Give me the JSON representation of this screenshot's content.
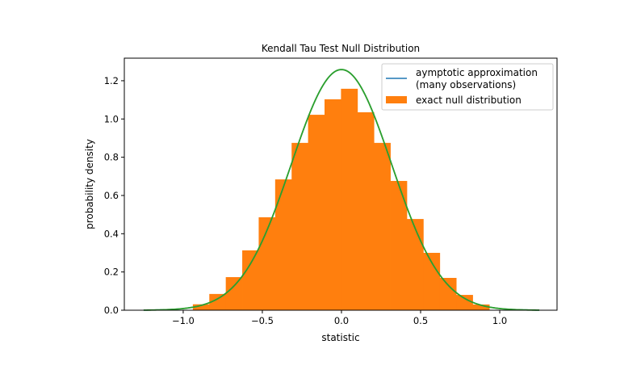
{
  "chart_data": {
    "type": "bar",
    "title": "Kendall Tau Test Null Distribution",
    "xlabel": "statistic",
    "ylabel": "probability density",
    "xlim": [
      -1.372,
      1.362
    ],
    "ylim": [
      0,
      1.318
    ],
    "xticks": [
      -1.0,
      -0.5,
      0.0,
      0.5,
      1.0
    ],
    "xtick_labels": [
      "−1.0",
      "−0.5",
      "0.0",
      "0.5",
      "1.0"
    ],
    "yticks": [
      0.0,
      0.2,
      0.4,
      0.6,
      0.8,
      1.0,
      1.2
    ],
    "ytick_labels": [
      "0.0",
      "0.2",
      "0.4",
      "0.6",
      "0.8",
      "1.0",
      "1.2"
    ],
    "grid": false,
    "legend_placement": "top-right",
    "histogram": {
      "name": "exact null distribution",
      "color": "#ff7f0e",
      "bin_edges": [
        -0.939,
        -0.835,
        -0.731,
        -0.627,
        -0.523,
        -0.419,
        -0.315,
        -0.211,
        -0.107,
        -0.003,
        0.101,
        0.205,
        0.309,
        0.413,
        0.517,
        0.621,
        0.725,
        0.829,
        0.934
      ],
      "values": [
        0.031,
        0.085,
        0.173,
        0.313,
        0.486,
        0.684,
        0.875,
        1.022,
        1.103,
        1.158,
        1.035,
        0.875,
        0.676,
        0.477,
        0.3,
        0.169,
        0.08,
        0.03
      ]
    },
    "curve": {
      "name": "aymptotic approximation\n(many observations)",
      "legend_lines": [
        "aymptotic approximation",
        "(many observations)"
      ],
      "distribution": "normal",
      "mean": 0.0,
      "std": 0.317,
      "x_range": [
        -1.25,
        1.25
      ],
      "legend_color": "#1f77b4",
      "drawn_color": "#2ca02c"
    }
  }
}
